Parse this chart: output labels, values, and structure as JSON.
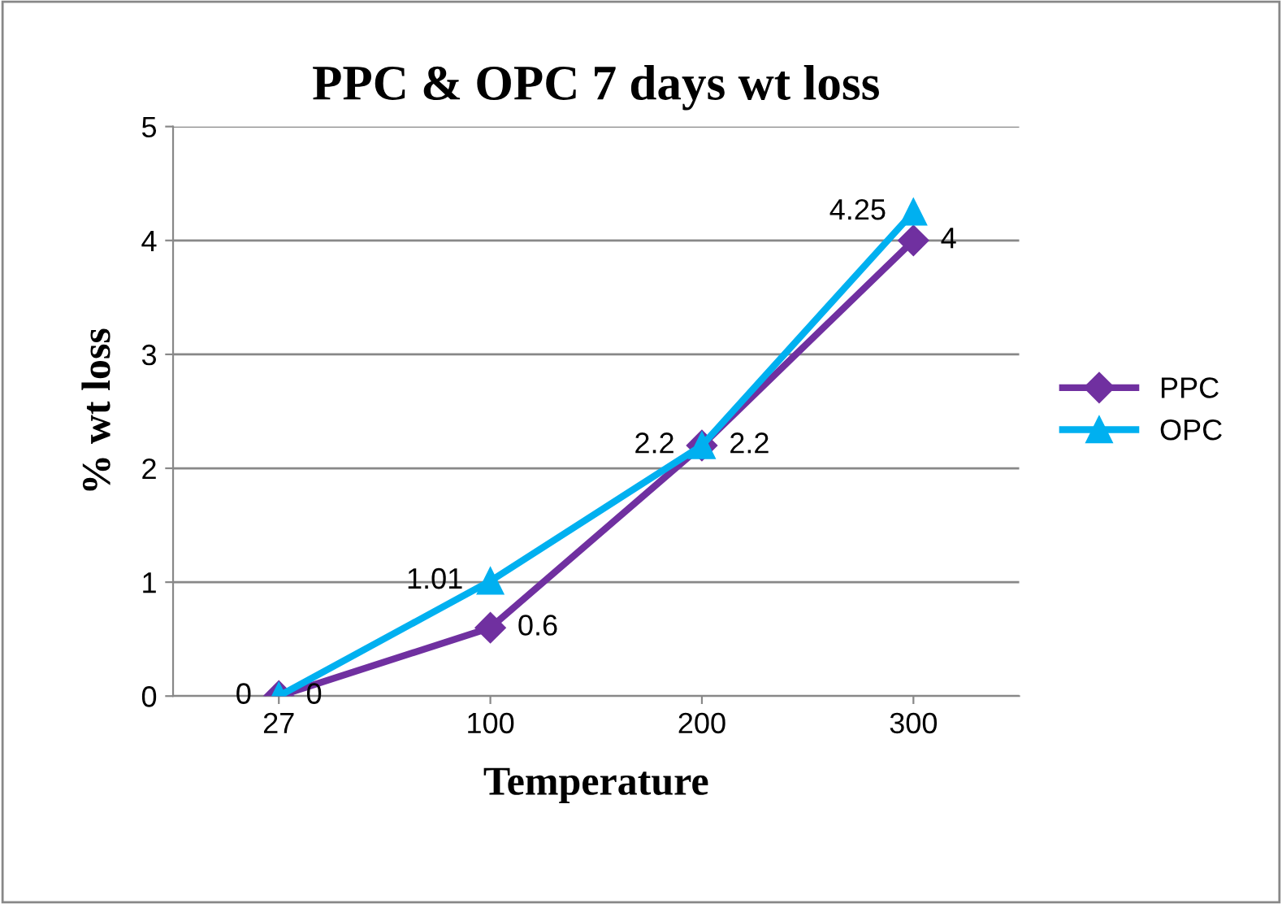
{
  "chart_data": {
    "type": "line",
    "title": "PPC & OPC 7 days wt loss",
    "xlabel": "Temperature",
    "ylabel": "% wt loss",
    "categories": [
      "27",
      "100",
      "200",
      "300"
    ],
    "series": [
      {
        "name": "PPC",
        "color": "#7030a0",
        "marker": "diamond",
        "values": [
          0,
          0.6,
          2.2,
          4
        ]
      },
      {
        "name": "OPC",
        "color": "#00b0f0",
        "marker": "triangle",
        "values": [
          0,
          1.01,
          2.2,
          4.25
        ]
      }
    ],
    "ylim": [
      0,
      5
    ],
    "yticks": [
      0,
      1,
      2,
      3,
      4,
      5
    ],
    "grid": "y",
    "legend": "right",
    "data_labels": true,
    "line_style": "solid"
  }
}
